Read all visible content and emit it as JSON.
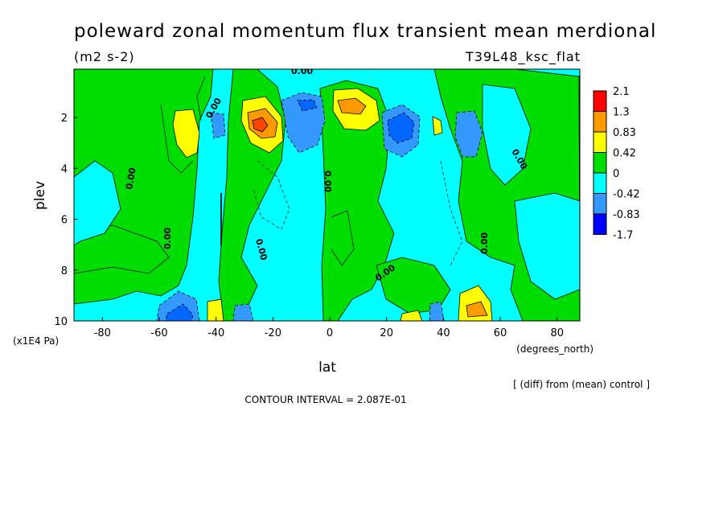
{
  "chart_data": {
    "type": "heatmap",
    "title": "poleward zonal momentum flux transient mean merdional",
    "units": "(m2 s-2)",
    "run_label": "T39L48_ksc_flat",
    "xlabel": "lat",
    "x_units": "(degrees_north)",
    "ylabel": "plev",
    "y_units": "(x1E4 Pa)",
    "footnote": "[ (diff) from (mean) control ]",
    "contour_interval": "CONTOUR INTERVAL = 2.087E-01",
    "xlim": [
      -90,
      88
    ],
    "ylim": [
      10,
      0.1
    ],
    "x_ticks": [
      -80,
      -60,
      -40,
      -20,
      0,
      20,
      40,
      60,
      80
    ],
    "x_tick_labels": [
      "-80",
      "-60",
      "-40",
      "-20",
      "0",
      "20",
      "40",
      "60",
      "80"
    ],
    "y_ticks": [
      2,
      4,
      6,
      8,
      10
    ],
    "y_tick_labels": [
      "2",
      "4",
      "6",
      "8",
      "10"
    ],
    "colorbar": {
      "labels": [
        "2.1",
        "1.3",
        "0.83",
        "0.42",
        "0",
        "-0.42",
        "-0.83",
        "-1.7"
      ],
      "colors": [
        "#ff0000",
        "#ff9900",
        "#ffff00",
        "#00dd00",
        "#00ffff",
        "#3399ff",
        "#0000ff"
      ]
    },
    "contour_labels": [
      "0.00",
      "0.00",
      "0.00",
      "0.00",
      "0.00",
      "0.00",
      "0.00",
      "0.00",
      "0.00"
    ],
    "features": [
      {
        "lat": -50,
        "plev": 2.5,
        "level": "positive",
        "value": 0.83
      },
      {
        "lat": -25,
        "plev": 2.4,
        "level": "positive",
        "value": 1.3
      },
      {
        "lat": 6,
        "plev": 1.6,
        "level": "positive",
        "value": 1.3
      },
      {
        "lat": 25,
        "plev": 2.5,
        "level": "negative",
        "value": -1.7
      },
      {
        "lat": -8,
        "plev": 1.6,
        "level": "negative",
        "value": -0.83
      },
      {
        "lat": 48,
        "plev": 2.8,
        "level": "negative",
        "value": -0.83
      },
      {
        "lat": -50,
        "plev": 9.6,
        "level": "negative",
        "value": -0.83
      },
      {
        "lat": 50,
        "plev": 9.5,
        "level": "positive",
        "value": 0.83
      },
      {
        "lat": 30,
        "plev": 9.8,
        "level": "positive",
        "value": 0.83
      },
      {
        "lat": -38,
        "plev": 9.7,
        "level": "positive",
        "value": 0.42
      }
    ]
  }
}
